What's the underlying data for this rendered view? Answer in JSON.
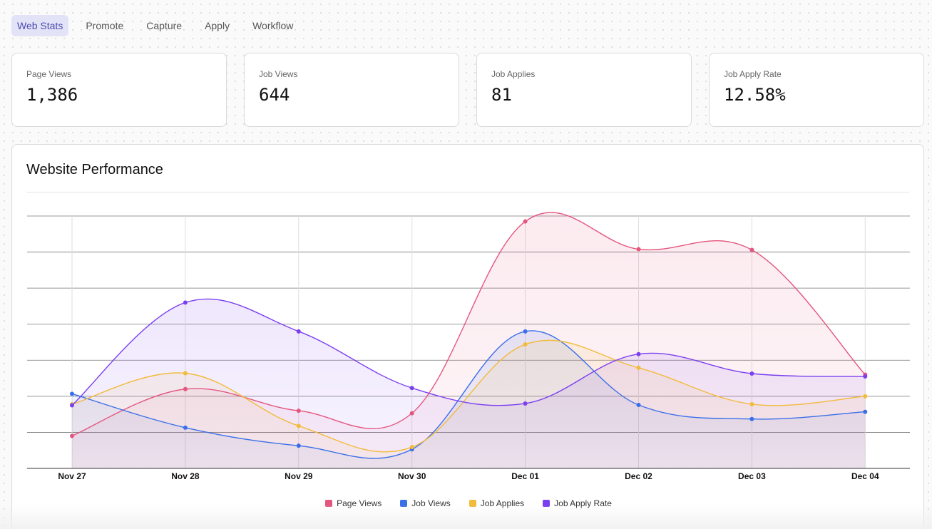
{
  "tabs": [
    "Web Stats",
    "Promote",
    "Capture",
    "Apply",
    "Workflow"
  ],
  "stats": [
    {
      "label": "Page Views",
      "value": "1,386"
    },
    {
      "label": "Job Views",
      "value": "644"
    },
    {
      "label": "Job Applies",
      "value": "81"
    },
    {
      "label": "Job Apply Rate",
      "value": "12.58%"
    }
  ],
  "panel_title": "Website Performance",
  "chart_data": {
    "type": "area",
    "title": "Website Performance",
    "categories": [
      "Nov 27",
      "Nov 28",
      "Nov 29",
      "Nov 30",
      "Dec 01",
      "Dec 02",
      "Dec 03",
      "Dec 04"
    ],
    "ylim": [
      0,
      7
    ],
    "series": [
      {
        "name": "Page Views",
        "color": "#e4567f",
        "values": [
          0.9,
          2.2,
          1.6,
          1.53,
          6.85,
          6.08,
          6.06,
          2.6
        ]
      },
      {
        "name": "Job Views",
        "color": "#3b6fe8",
        "values": [
          2.07,
          1.13,
          0.63,
          0.53,
          3.8,
          1.76,
          1.37,
          1.57
        ]
      },
      {
        "name": "Job Applies",
        "color": "#f2bb3b",
        "values": [
          1.78,
          2.64,
          1.18,
          0.59,
          3.44,
          2.79,
          1.78,
          2.0
        ]
      },
      {
        "name": "Job Apply Rate",
        "color": "#7b3ff0",
        "values": [
          1.75,
          4.6,
          3.8,
          2.23,
          1.8,
          3.17,
          2.63,
          2.55
        ]
      }
    ]
  }
}
